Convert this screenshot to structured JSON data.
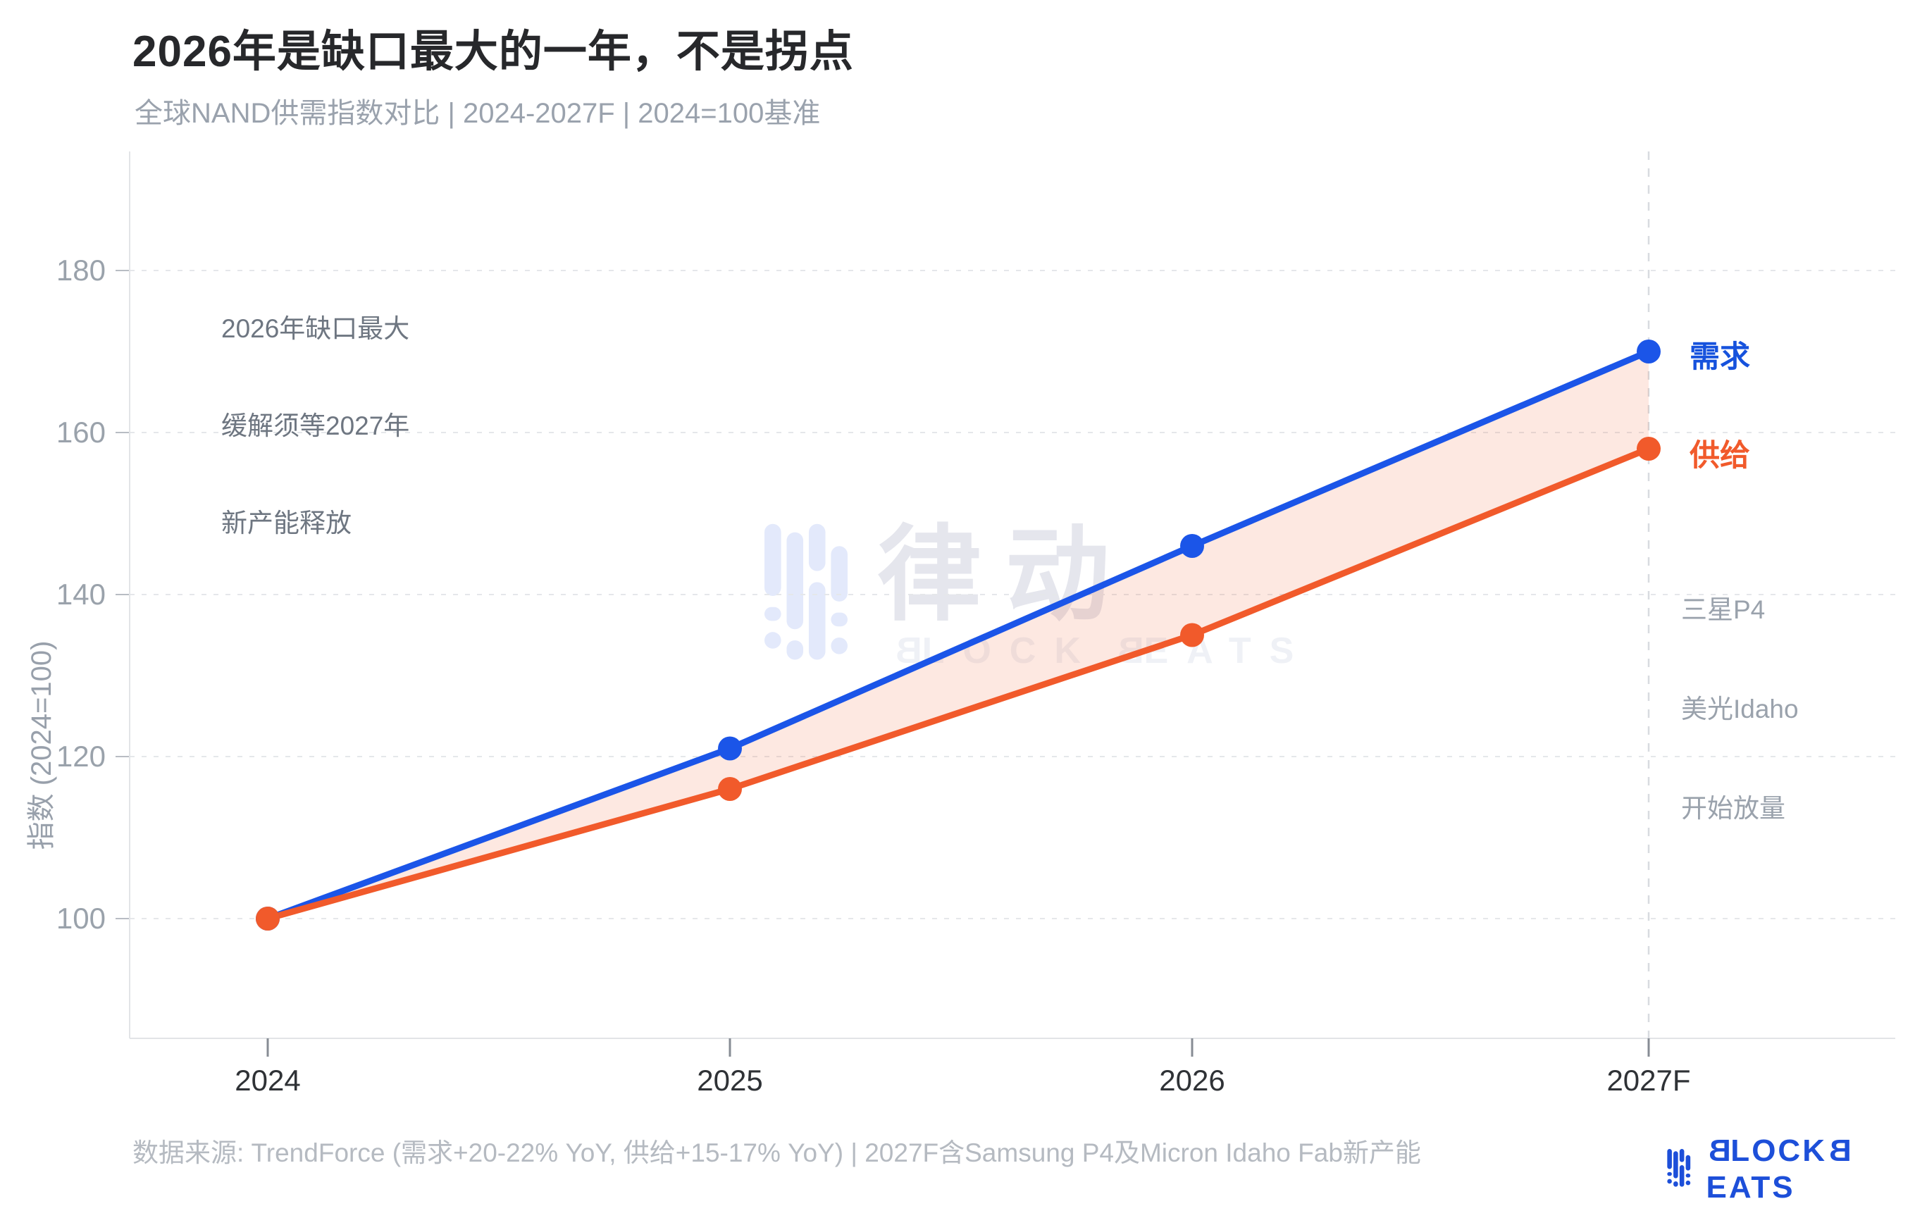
{
  "header": {
    "title": "2026年是缺口最大的一年，不是拐点",
    "subtitle": "全球NAND供需指数对比 | 2024-2027F | 2024=100基准"
  },
  "chart_data": {
    "type": "line",
    "categories": [
      "2024",
      "2025",
      "2026",
      "2027F"
    ],
    "series": [
      {
        "name": "需求",
        "color": "#1b55e8",
        "values": [
          100,
          121,
          146,
          170
        ]
      },
      {
        "name": "供给",
        "color": "#f15a2b",
        "values": [
          100,
          116,
          135,
          158
        ]
      }
    ],
    "fill_between_series": true,
    "fill_color": "rgba(242,90,43,0.14)",
    "ylabel": "指数 (2024=100)",
    "yticks": [
      100,
      120,
      140,
      160,
      180
    ],
    "ylim": [
      85,
      196
    ],
    "grid": "dashed-horizontal",
    "forecast_marker_category": "2027F",
    "legend_position": "right-of-last-points"
  },
  "annotations": {
    "gap_note": {
      "lines": [
        "2026年缺口最大",
        "缓解须等2027年",
        "新产能释放"
      ]
    },
    "capacity_note": {
      "lines": [
        "三星P4",
        "美光Idaho",
        "开始放量"
      ]
    }
  },
  "watermark": {
    "cn": "律动",
    "en": "BLOCKBEATS",
    "icon": "blockbeats-bars-icon"
  },
  "footer": {
    "source": "数据来源: TrendForce (需求+20-22% YoY, 供给+15-17% YoY) | 2027F含Samsung P4及Micron Idaho Fab新产能",
    "logo_text": "BLOCKBEATS",
    "logo_icon": "blockbeats-bars-icon"
  },
  "colors": {
    "demand_blue": "#1b55e8",
    "supply_orange": "#f15a2b",
    "gap_fill": "rgba(242,90,43,0.14)",
    "logo_blue": "#1d4fd9",
    "grid_gray": "#e5e7ea",
    "axis_gray": "#e2e4e7"
  }
}
